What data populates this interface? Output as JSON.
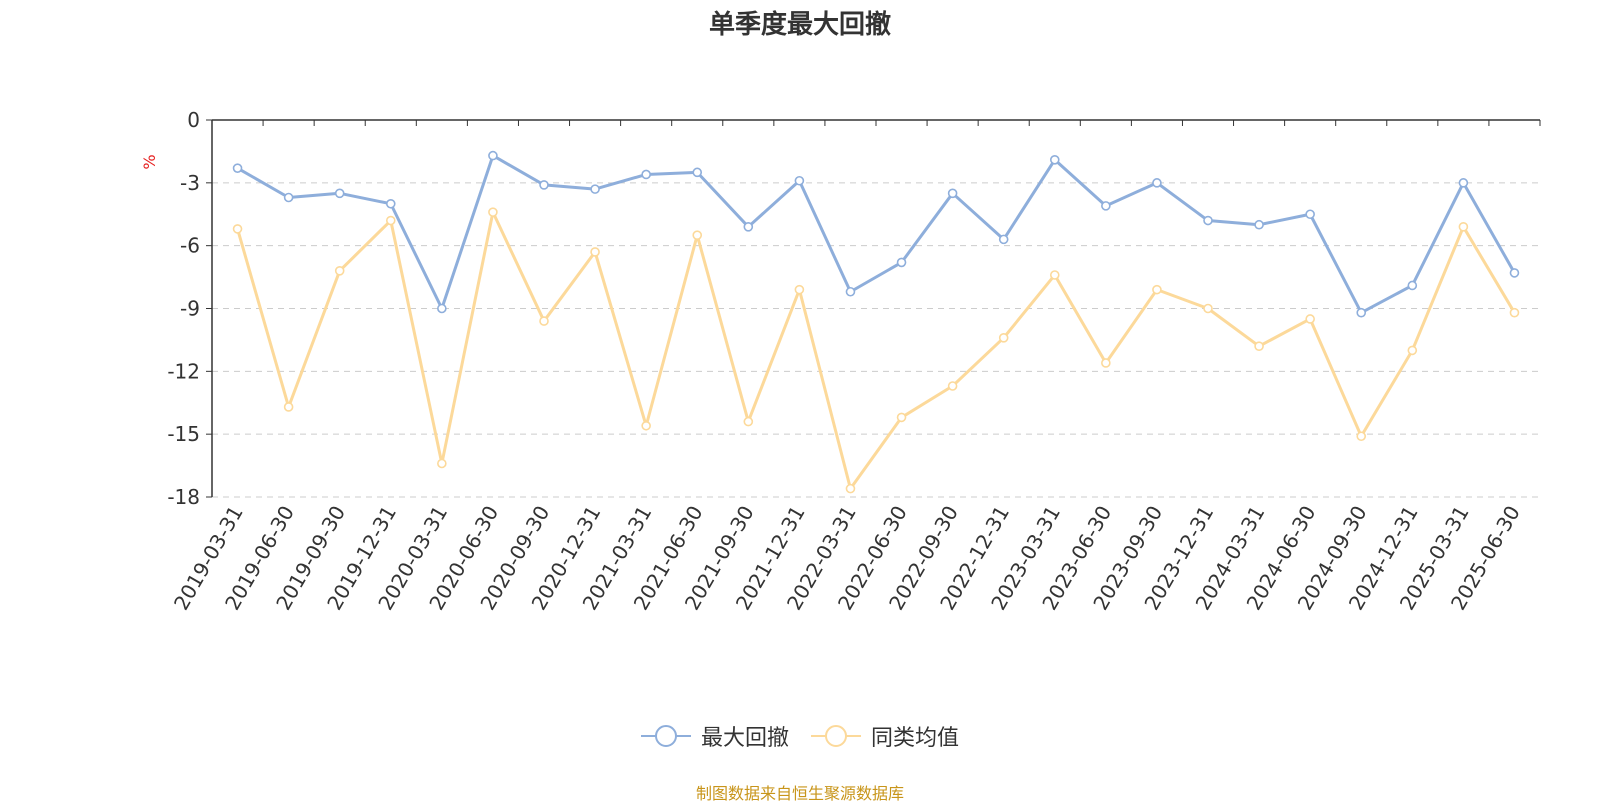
{
  "title": "单季度最大回撤",
  "source": "制图数据来自恒生聚源数据库",
  "colors": {
    "series_1": "#8eaedb",
    "series_2": "#fcd99a",
    "unit": "#e62020"
  },
  "chart_data": {
    "type": "line",
    "title": "单季度最大回撤",
    "ylabel": "%",
    "ylim": [
      -18,
      0
    ],
    "yticks": [
      0,
      -3,
      -6,
      -9,
      -12,
      -15,
      -18
    ],
    "grid": true,
    "legend_position": "bottom",
    "x": [
      "2019-03-31",
      "2019-06-30",
      "2019-09-30",
      "2019-12-31",
      "2020-03-31",
      "2020-06-30",
      "2020-09-30",
      "2020-12-31",
      "2021-03-31",
      "2021-06-30",
      "2021-09-30",
      "2021-12-31",
      "2022-03-31",
      "2022-06-30",
      "2022-09-30",
      "2022-12-31",
      "2023-03-31",
      "2023-06-30",
      "2023-09-30",
      "2023-12-31",
      "2024-03-31",
      "2024-06-30",
      "2024-09-30",
      "2024-12-31",
      "2025-03-31",
      "2025-06-30"
    ],
    "series": [
      {
        "name": "最大回撤",
        "values": [
          -2.3,
          -3.7,
          -3.5,
          -4.0,
          -9.0,
          -1.7,
          -3.1,
          -3.3,
          -2.6,
          -2.5,
          -5.1,
          -2.9,
          -8.2,
          -6.8,
          -3.5,
          -5.7,
          -1.9,
          -4.1,
          -3.0,
          -4.8,
          -5.0,
          -4.5,
          -9.2,
          -7.9,
          -3.0,
          -7.3
        ]
      },
      {
        "name": "同类均值",
        "values": [
          -5.2,
          -13.7,
          -7.2,
          -4.8,
          -16.4,
          -4.4,
          -9.6,
          -6.3,
          -14.6,
          -5.5,
          -14.4,
          -8.1,
          -17.6,
          -14.2,
          -12.7,
          -10.4,
          -7.4,
          -11.6,
          -8.1,
          -9.0,
          -10.8,
          -9.5,
          -15.1,
          -11.0,
          -5.1,
          -9.2
        ]
      }
    ]
  },
  "legend": [
    {
      "label": "最大回撤"
    },
    {
      "label": "同类均值"
    }
  ]
}
